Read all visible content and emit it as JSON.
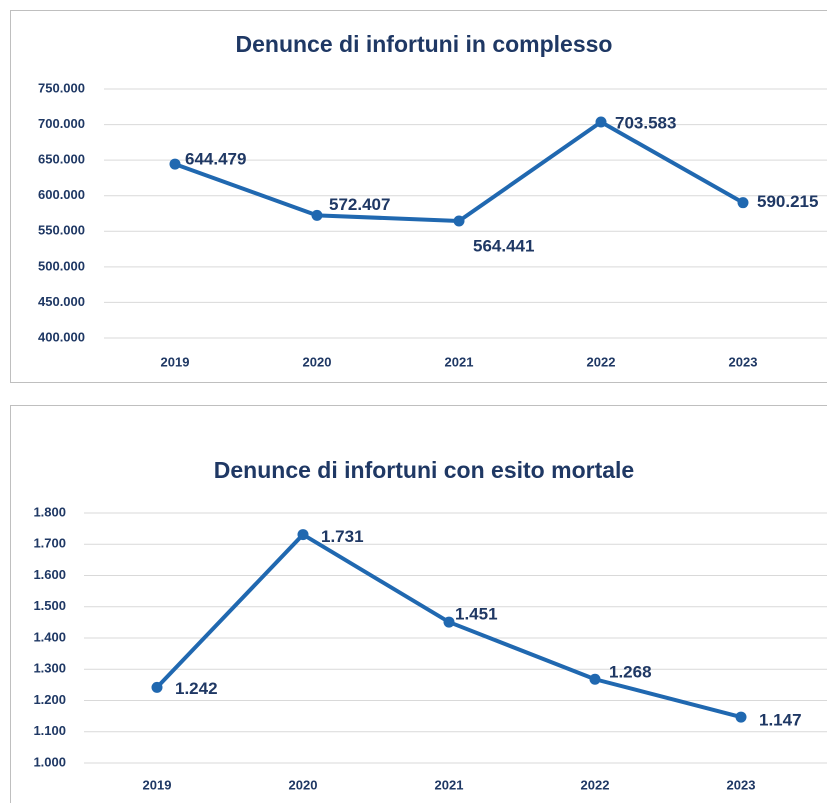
{
  "chart_data": [
    {
      "type": "line",
      "title": "Denunce di infortuni in complesso",
      "categories": [
        "2019",
        "2020",
        "2021",
        "2022",
        "2023"
      ],
      "values": [
        644479,
        572407,
        564441,
        703583,
        590215
      ],
      "value_labels": [
        "644.479",
        "572.407",
        "564.441",
        "703.583",
        "590.215"
      ],
      "color": "#2068b0",
      "ylim": [
        400000,
        750000
      ],
      "yticks": [
        {
          "value": 400000,
          "label": "400.000"
        },
        {
          "value": 450000,
          "label": "450.000"
        },
        {
          "value": 500000,
          "label": "500.000"
        },
        {
          "value": 550000,
          "label": "550.000"
        },
        {
          "value": 600000,
          "label": "600.000"
        },
        {
          "value": 650000,
          "label": "650.000"
        },
        {
          "value": 700000,
          "label": "700.000"
        },
        {
          "value": 750000,
          "label": "750.000"
        }
      ],
      "grid": true
    },
    {
      "type": "line",
      "title": "Denunce di infortuni con esito mortale",
      "categories": [
        "2019",
        "2020",
        "2021",
        "2022",
        "2023"
      ],
      "values": [
        1242,
        1731,
        1451,
        1268,
        1147
      ],
      "value_labels": [
        "1.242",
        "1.731",
        "1.451",
        "1.268",
        "1.147"
      ],
      "color": "#2068b0",
      "ylim": [
        1000,
        1800
      ],
      "yticks": [
        {
          "value": 1000,
          "label": "1.000"
        },
        {
          "value": 1100,
          "label": "1.100"
        },
        {
          "value": 1200,
          "label": "1.200"
        },
        {
          "value": 1300,
          "label": "1.300"
        },
        {
          "value": 1400,
          "label": "1.400"
        },
        {
          "value": 1500,
          "label": "1.500"
        },
        {
          "value": 1600,
          "label": "1.600"
        },
        {
          "value": 1700,
          "label": "1.700"
        },
        {
          "value": 1800,
          "label": "1.800"
        }
      ],
      "grid": true
    }
  ]
}
